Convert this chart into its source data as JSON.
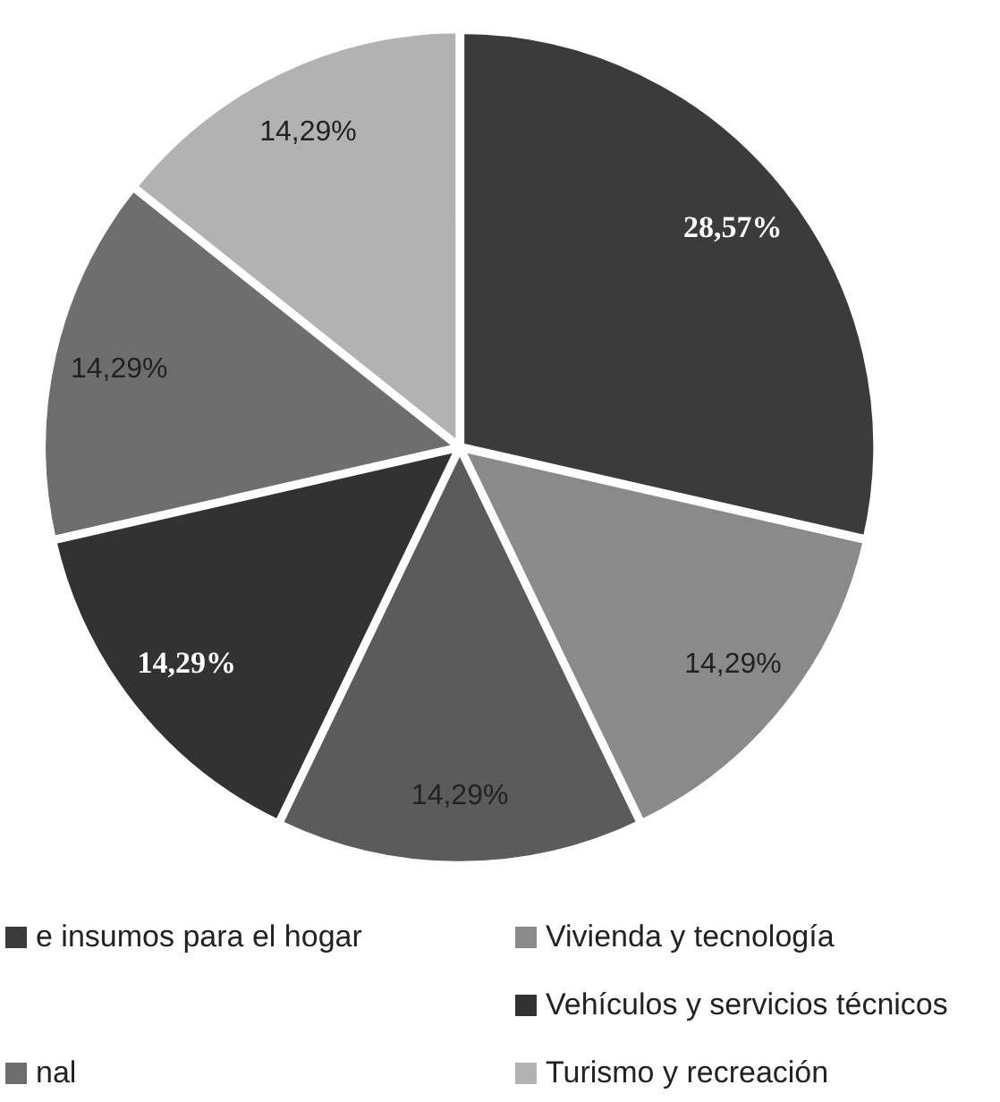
{
  "chart_data": {
    "type": "pie",
    "categories": [
      "e insumos para el hogar",
      "Vivienda y tecnología",
      null,
      "Vehículos y servicios técnicos",
      "nal",
      "Turismo y recreación"
    ],
    "values": [
      28.57,
      14.29,
      14.29,
      14.29,
      14.29,
      14.29
    ],
    "colors": [
      "#3b3b3b",
      "#8a8a8a",
      "#5b5b5b",
      "#323232",
      "#6e6e6e",
      "#b2b2b2"
    ],
    "value_labels": [
      "28,57%",
      "14,29%",
      "14,29%",
      "14,29%",
      "14,29%",
      "14,29%"
    ],
    "legend": "bottom"
  }
}
